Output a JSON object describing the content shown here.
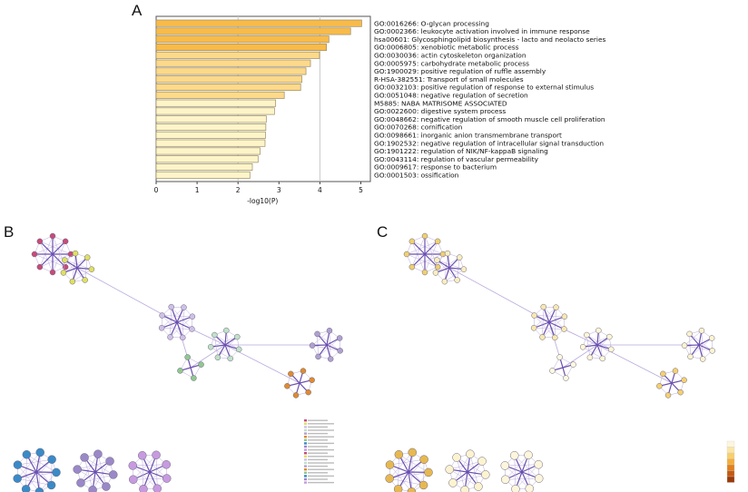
{
  "panels": {
    "a": "A",
    "b": "B",
    "c": "C"
  },
  "chart_data": {
    "type": "bar",
    "orientation": "horizontal",
    "xlabel": "-log10(P)",
    "xlim": [
      0,
      5.2
    ],
    "xticks": [
      0,
      1,
      2,
      3,
      4,
      5
    ],
    "grid": "vertical lines at 2 and 4",
    "categories": [
      "GO:0016266: O-glycan processing",
      "GO:0002366: leukocyte activation involved in immune response",
      "hsa00601: Glycosphingolipid biosynthesis - lacto and neolacto series",
      "GO:0006805: xenobiotic metabolic process",
      "GO:0030036: actin cytoskeleton organization",
      "GO:0005975: carbohydrate metabolic process",
      "GO:1900029: positive regulation of ruffle assembly",
      "R-HSA-382551: Transport of small molecules",
      "GO:0032103: positive regulation of response to external stimulus",
      "GO:0051048: negative regulation of secretion",
      "M5885: NABA MATRISOME ASSOCIATED",
      "GO:0022600: digestive system process",
      "GO:0048662: negative regulation of smooth muscle cell proliferation",
      "GO:0070268: cornification",
      "GO:0098661: inorganic anion transmembrane transport",
      "GO:1902532: negative regulation of intracellular signal transduction",
      "GO:1901222: regulation of NIK/NF-kappaB signaling",
      "GO:0043114: regulation of vascular permeability",
      "GO:0009617: response to bacterium",
      "GO:0001503: ossification"
    ],
    "values": [
      5.02,
      4.75,
      4.22,
      4.16,
      3.99,
      3.77,
      3.66,
      3.56,
      3.53,
      3.13,
      2.92,
      2.89,
      2.69,
      2.68,
      2.67,
      2.66,
      2.54,
      2.49,
      2.35,
      2.29
    ],
    "colors": {
      "high": "#f8bb4a",
      "mid": "#fcd98b",
      "low": "#fdf5c9",
      "border": "#9a8a60",
      "grid": "#c8c8c8"
    }
  },
  "network": {
    "edge_color": "#6a4fb0",
    "edge_light": "#b9a9dc",
    "colorbar": [
      "#fdf6dc",
      "#fbe6a8",
      "#f8cf6e",
      "#f3ad3e",
      "#e0801f",
      "#c25b12",
      "#9a3a0a"
    ]
  }
}
